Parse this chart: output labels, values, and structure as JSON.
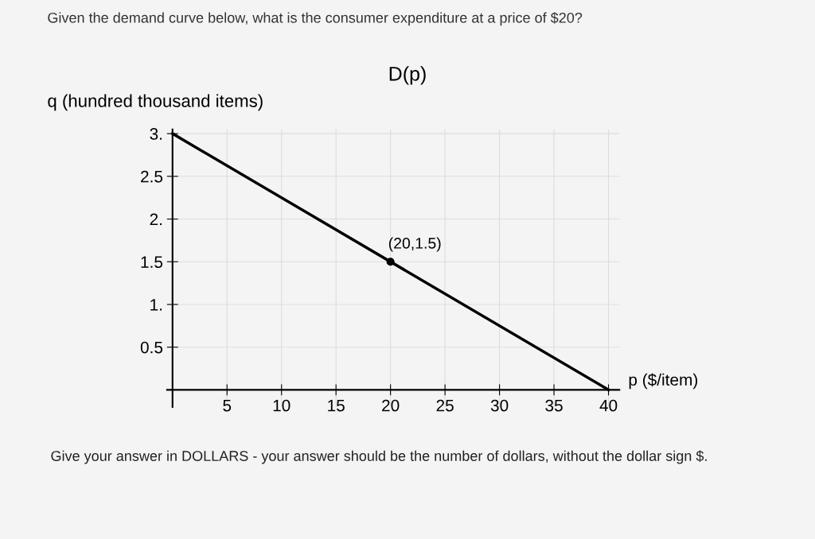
{
  "chart_data": {
    "type": "line",
    "title": "Given the demand curve below, what is the consumer expenditure at a price of $20?",
    "subtitle": "D(p)",
    "xlabel": "p ($/item)",
    "ylabel": "q (hundred thousand items)",
    "annotations": [
      {
        "text": "(20,1.5)",
        "x": 20,
        "y": 1.5
      },
      "Give your answer in DOLLARS - your answer should be the number of dollars, without the dollar sign $."
    ],
    "series": [
      {
        "x": [
          0,
          40
        ],
        "values": [
          3,
          0
        ],
        "color": "#000000",
        "marker": "none"
      },
      {
        "type": "scatter",
        "x": [
          20
        ],
        "values": [
          1.5
        ],
        "color": "#000000",
        "marker": "circle"
      }
    ],
    "xlim": [
      -0.5,
      41
    ],
    "ylim": [
      -0.2,
      3.05
    ],
    "xticks": [
      5,
      10,
      15,
      20,
      25,
      30,
      35,
      40
    ],
    "yticks": [
      {
        "value": 0.5,
        "label": "0.5"
      },
      {
        "value": 1,
        "label": "1."
      },
      {
        "value": 1.5,
        "label": "1.5"
      },
      {
        "value": 2,
        "label": "2."
      },
      {
        "value": 2.5,
        "label": "2.5"
      },
      {
        "value": 3,
        "label": "3."
      }
    ],
    "grid": true,
    "legend": false
  }
}
